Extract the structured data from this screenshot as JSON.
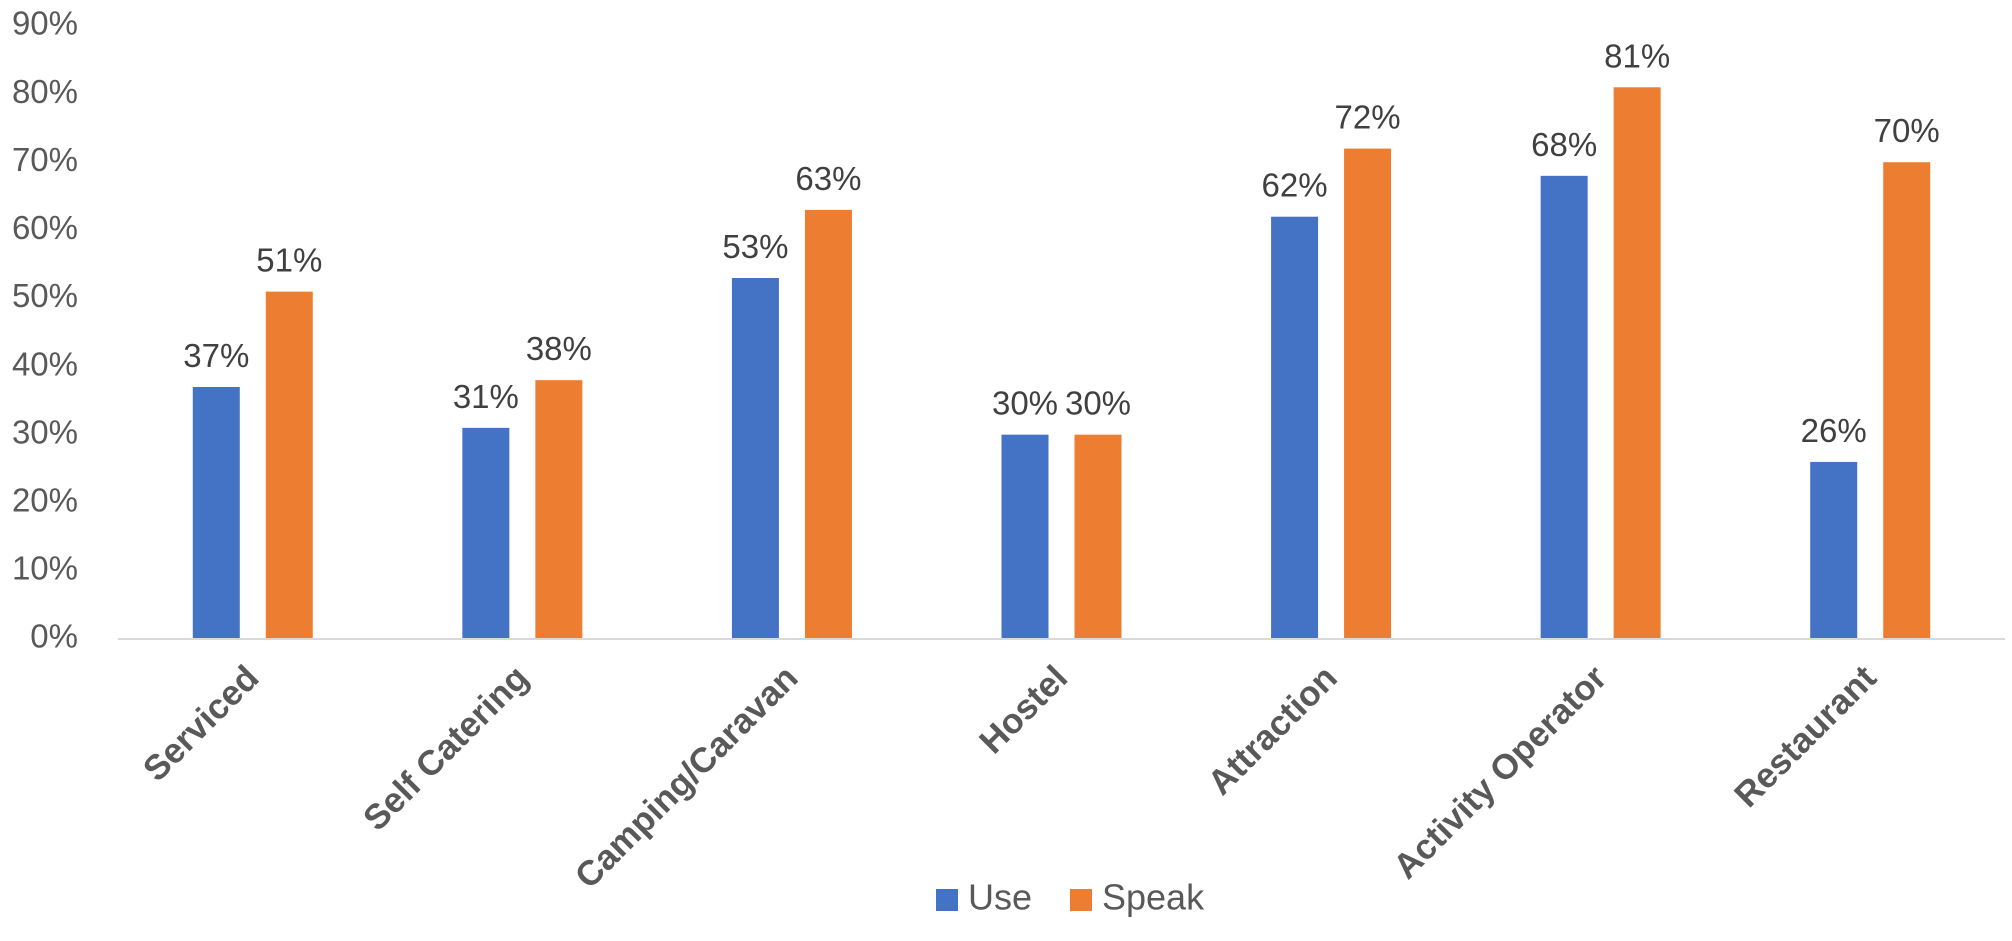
{
  "chart_data": {
    "type": "bar",
    "categories": [
      "Serviced",
      "Self Catering",
      "Camping/Caravan",
      "Hostel",
      "Attraction",
      "Activity Operator",
      "Restaurant"
    ],
    "series": [
      {
        "name": "Use",
        "color": "#4472C4",
        "values": [
          37,
          31,
          53,
          30,
          62,
          68,
          26
        ]
      },
      {
        "name": "Speak",
        "color": "#ED7D31",
        "values": [
          51,
          38,
          63,
          30,
          72,
          81,
          70
        ]
      }
    ],
    "ylim": [
      0,
      90
    ],
    "yticks": [
      0,
      10,
      20,
      30,
      40,
      50,
      60,
      70,
      80,
      90
    ],
    "value_format": "percent",
    "data_labels": true,
    "legend_position": "bottom",
    "grid": false,
    "axis_color": "#D9D9D9"
  }
}
